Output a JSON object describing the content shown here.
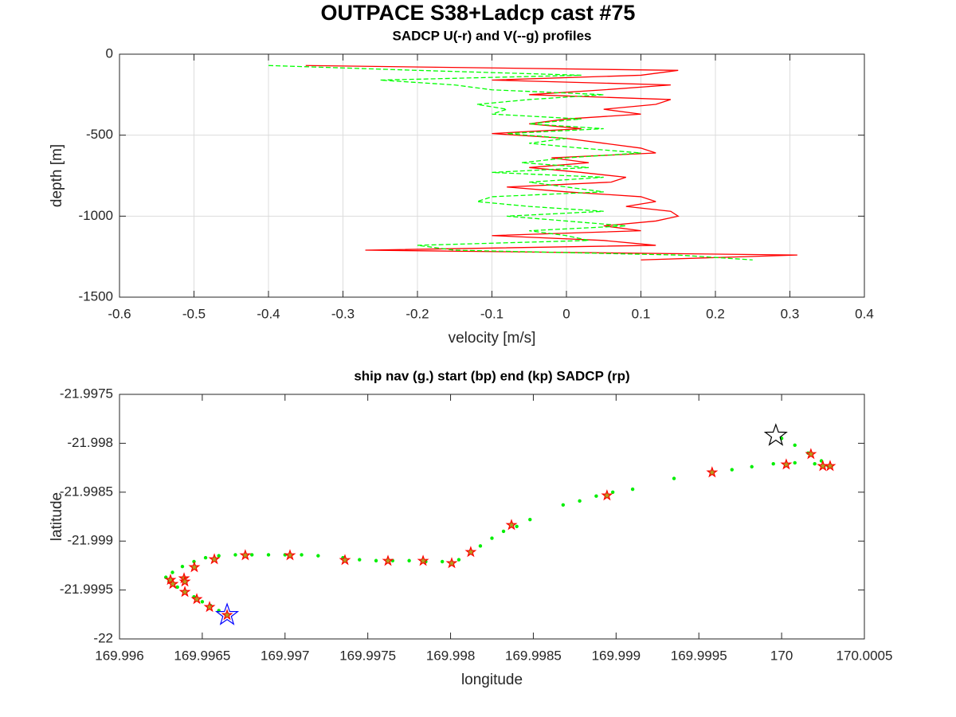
{
  "title": "OUTPACE S38+Ladcp cast #75",
  "chart_data": [
    {
      "type": "line",
      "title": "SADCP U(-r) and V(--g) profiles",
      "xlabel": "velocity [m/s]",
      "ylabel": "depth [m]",
      "xlim": [
        -0.6,
        0.4
      ],
      "ylim": [
        -1500,
        0
      ],
      "xticks": [
        -0.6,
        -0.5,
        -0.4,
        -0.3,
        -0.2,
        -0.1,
        0,
        0.1,
        0.2,
        0.3,
        0.4
      ],
      "yticks": [
        -1500,
        -1000,
        -500,
        0
      ],
      "grid": true,
      "y": [
        -70,
        -100,
        -130,
        -160,
        -190,
        -220,
        -250,
        -280,
        -310,
        -340,
        -370,
        -400,
        -430,
        -460,
        -490,
        -520,
        -550,
        -580,
        -610,
        -640,
        -670,
        -700,
        -730,
        -760,
        -790,
        -820,
        -850,
        -880,
        -910,
        -940,
        -970,
        -1000,
        -1030,
        -1060,
        -1090,
        -1120,
        -1150,
        -1180,
        -1210,
        -1240,
        -1270
      ],
      "series": [
        {
          "color": "#ff0000",
          "style": "solid",
          "x": [
            -0.35,
            0.15,
            0.1,
            -0.1,
            0.14,
            0.05,
            -0.05,
            0.14,
            0.12,
            0.05,
            0.1,
            0.0,
            -0.05,
            0.02,
            -0.1,
            0.0,
            0.05,
            0.1,
            0.12,
            -0.02,
            0.03,
            -0.05,
            0.02,
            0.08,
            0.06,
            -0.08,
            0.0,
            0.1,
            0.12,
            0.08,
            0.14,
            0.15,
            0.12,
            0.05,
            0.1,
            -0.1,
            0.05,
            0.12,
            -0.27,
            0.31,
            0.1
          ]
        },
        {
          "color": "#00ff00",
          "style": "dashed",
          "x": [
            -0.4,
            -0.2,
            0.02,
            -0.25,
            -0.15,
            -0.1,
            0.05,
            -0.05,
            -0.12,
            -0.08,
            -0.1,
            0.02,
            -0.05,
            0.05,
            -0.08,
            0.0,
            -0.05,
            0.02,
            0.1,
            0.0,
            -0.06,
            0.03,
            -0.1,
            0.05,
            -0.05,
            0.0,
            0.05,
            -0.1,
            -0.12,
            -0.05,
            0.05,
            -0.08,
            0.0,
            0.08,
            -0.05,
            0.0,
            0.03,
            -0.2,
            -0.15,
            0.15,
            0.25
          ]
        }
      ]
    },
    {
      "type": "scatter",
      "title": "ship nav (g.) start (bp) end (kp) SADCP (rp)",
      "xlabel": "longitude",
      "ylabel": "latitude",
      "xlim": [
        169.996,
        170.0005
      ],
      "ylim": [
        -22,
        -21.9975
      ],
      "xticks": [
        169.996,
        169.9965,
        169.997,
        169.9975,
        169.998,
        169.9985,
        169.999,
        169.9995,
        170,
        170.0005
      ],
      "yticks": [
        -22,
        -21.9995,
        -21.999,
        -21.9985,
        -21.998,
        -21.9975
      ],
      "grid": false,
      "series": [
        {
          "color": "#00ee00",
          "marker": "dot",
          "size": 2.2,
          "x": [
            169.99665,
            169.9966,
            169.99655,
            169.9965,
            169.99645,
            169.9964,
            169.99635,
            169.9963,
            169.99628,
            169.99632,
            169.99638,
            169.99645,
            169.99652,
            169.9966,
            169.9967,
            169.9968,
            169.9969,
            169.997,
            169.9971,
            169.9972,
            169.99735,
            169.99745,
            169.99755,
            169.99765,
            169.99775,
            169.99785,
            169.99795,
            169.99805,
            169.99812,
            169.99818,
            169.99825,
            169.99832,
            169.9984,
            169.99848,
            169.99868,
            169.99878,
            169.99888,
            169.99898,
            169.9991,
            169.99935,
            169.99958,
            169.9997,
            169.99982,
            169.99995,
            170.00008,
            170.0002,
            170.00028,
            170.0003,
            170.00024,
            170.00016,
            170.00008,
            170.0
          ],
          "y": [
            -21.99975,
            -21.99971,
            -21.99966,
            -21.99962,
            -21.99957,
            -21.99952,
            -21.99947,
            -21.99941,
            -21.99937,
            -21.99932,
            -21.99926,
            -21.99921,
            -21.99917,
            -21.99915,
            -21.99914,
            -21.99914,
            -21.99914,
            -21.99914,
            -21.99914,
            -21.99915,
            -21.99917,
            -21.99919,
            -21.9992,
            -21.9992,
            -21.9992,
            -21.99921,
            -21.99921,
            -21.99919,
            -21.99912,
            -21.99905,
            -21.99897,
            -21.9989,
            -21.99885,
            -21.99878,
            -21.99863,
            -21.99859,
            -21.99854,
            -21.9985,
            -21.99847,
            -21.99836,
            -21.9983,
            -21.99827,
            -21.99824,
            -21.99821,
            -21.9982,
            -21.99821,
            -21.99823,
            -21.99824,
            -21.99818,
            -21.9981,
            -21.99802,
            -21.99795
          ]
        },
        {
          "color": "#ff0000",
          "fill": "#b0a020",
          "marker": "star",
          "size": 6,
          "x": [
            169.996308,
            169.996322,
            169.99639,
            169.996395,
            169.996395,
            169.996452,
            169.996467,
            169.996544,
            169.996573,
            169.99665,
            169.99676,
            169.99703,
            169.997362,
            169.997622,
            169.997834,
            169.998007,
            169.998122,
            169.998368,
            169.998945,
            169.99958,
            170.000028,
            170.000177,
            170.000249,
            170.000293
          ],
          "y": [
            -21.999397,
            -21.999438,
            -21.999381,
            -21.999414,
            -21.99952,
            -21.999267,
            -21.999593,
            -21.999674,
            -21.999186,
            -21.999756,
            -21.999145,
            -21.999145,
            -21.999194,
            -21.999202,
            -21.999202,
            -21.999226,
            -21.999112,
            -21.998836,
            -21.998534,
            -21.998298,
            -21.998217,
            -21.998111,
            -21.998233,
            -21.998233
          ]
        },
        {
          "color": "#0000ff",
          "fill": "none",
          "marker": "star",
          "size": 14,
          "x": [
            169.99665
          ],
          "y": [
            -21.999756
          ]
        },
        {
          "color": "#000000",
          "fill": "none",
          "marker": "star",
          "size": 14,
          "x": [
            169.999965
          ],
          "y": [
            -21.997923
          ]
        }
      ]
    }
  ]
}
